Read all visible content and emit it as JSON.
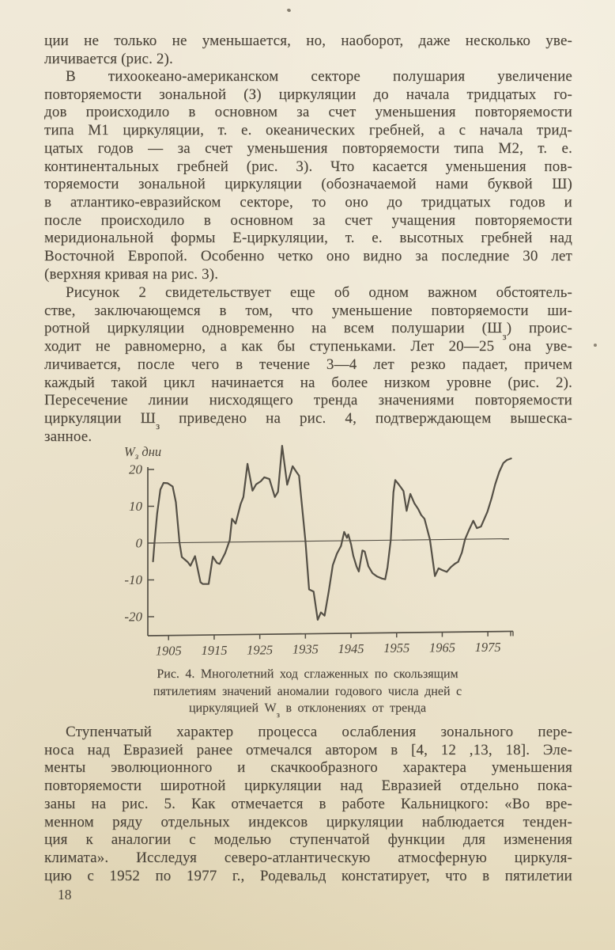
{
  "page": {
    "number": "18",
    "background_color": "#ede5d0",
    "ink_color": "#4a4339",
    "chart_ink_color": "#555046"
  },
  "paragraphs": [
    {
      "indent": false,
      "last_line_justified": false,
      "lines": [
        {
          "t": "ции не только не уменьшается, но, наоборот, даже несколько уве-"
        },
        {
          "t": "личивается (рис. 2)."
        }
      ]
    },
    {
      "indent": true,
      "last_line_justified": false,
      "lines": [
        {
          "t": "В тихоокеано-американском секторе полушария увеличение"
        },
        {
          "t": "повторяемости зональной (З) циркуляции до начала тридцатых го-"
        },
        {
          "t": "дов происходило в основном за счет уменьшения повторяемости"
        },
        {
          "t": "типа М1 циркуляции, т. е. океанических гребней, а с начала трид-"
        },
        {
          "t": "цатых годов — за счет уменьшения повторяемости типа М2, т. е."
        },
        {
          "t": "континентальных гребней (рис. 3). Что касается уменьшения пов-"
        },
        {
          "t": "торяемости зональной циркуляции (обозначаемой нами буквой Ш)"
        },
        {
          "t": "в атлантико-евразийском секторе, то оно до тридцатых годов и"
        },
        {
          "t": "после происходило в основном за счет учащения повторяемости"
        },
        {
          "t": "меридиональной формы Е-циркуляции, т. е. высотных гребней над"
        },
        {
          "t": "Восточной Европой. Особенно четко оно видно за последние 30 лет"
        },
        {
          "t": "(верхняя кривая на рис. 3)."
        }
      ]
    },
    {
      "indent": true,
      "last_line_justified": false,
      "lines": [
        {
          "t": "Рисунок 2 свидетельствует еще об одном важном обстоятель-"
        },
        {
          "t": "стве, заключающемся в том, что уменьшение повторяемости ши-"
        },
        {
          "parts": [
            "ротной циркуляции одновременно на всем полушарии (Ш",
            "з",
            ") проис-"
          ]
        },
        {
          "t": "ходит не равномерно, а как бы ступеньками. Лет 20—25 она уве-"
        },
        {
          "t": "личивается, после чего в течение 3—4 лет резко падает, причем"
        },
        {
          "t": "каждый такой цикл начинается на более низком уровне (рис. 2)."
        },
        {
          "t": "Пересечение линии нисходящего тренда значениями повторяемости"
        },
        {
          "parts": [
            "циркуляции Ш",
            "з",
            " приведено на рис. 4, подтверждающем вышеска-"
          ]
        },
        {
          "t": "занное."
        }
      ]
    },
    {
      "indent": true,
      "last_line_justified": true,
      "lines": [
        {
          "t": "Ступенчатый характер процесса ослабления зонального пере-"
        },
        {
          "t": "носа над Евразией ранее отмечался автором в [4, 12 ,13, 18]. Эле-"
        },
        {
          "t": "менты эволюционного и скачкообразного характера уменьшения"
        },
        {
          "t": "повторяемости широтной циркуляции над Евразией отдельно пока-"
        },
        {
          "t": "заны на рис. 5. Как отмечается в работе Кальницкого: «Во вре-"
        },
        {
          "t": "менном ряду отдельных индексов циркуляции наблюдается тенден-"
        },
        {
          "t": "ция к аналогии с моделью ступенчатой функции для изменения"
        },
        {
          "t": "климата». Исследуя северо-атлантическую атмосферную циркуля-"
        },
        {
          "t": "цию с 1952 по 1977 г., Родевальд констатирует, что в пятилетии"
        }
      ]
    }
  ],
  "figure_caption": {
    "lines": [
      {
        "t": "Рис. 4. Многолетний ход сглаженных по скользящим"
      },
      {
        "t": "пятилетиям значений аномалии годового числа дней с"
      },
      {
        "parts": [
          "циркуляцией W",
          "з",
          " в отклонениях от тренда"
        ]
      }
    ]
  },
  "chart_data": {
    "type": "line",
    "title": "Рис. 4. Многолетний ход сглаженных по скользящим пятилетиям значений аномалии годового числа дней с циркуляцией Wз в отклонениях от тренда",
    "xlabel": "",
    "ylabel": "Wз дни",
    "y_axis_label_parts": [
      "W",
      "з",
      " дни"
    ],
    "x_ticks": [
      1905,
      1915,
      1925,
      1935,
      1945,
      1955,
      1965,
      1975
    ],
    "y_ticks": [
      20,
      10,
      0,
      -10,
      -20
    ],
    "xlim": [
      1900.5,
      1981
    ],
    "ylim": [
      -25,
      27
    ],
    "grid": false,
    "zero_line": true,
    "legend": "none",
    "series": [
      {
        "name": "Аномалия числа дней с циркуляцией Wз (скользящие пятилетия)",
        "points": [
          [
            1901.6,
            -5
          ],
          [
            1901.9,
            0
          ],
          [
            1902.5,
            8
          ],
          [
            1903.2,
            14.5
          ],
          [
            1903.9,
            16.3
          ],
          [
            1904.8,
            16.2
          ],
          [
            1905.9,
            15.3
          ],
          [
            1906.6,
            11
          ],
          [
            1907.4,
            0
          ],
          [
            1907.9,
            -3.9
          ],
          [
            1909.2,
            -5.3
          ],
          [
            1909.8,
            -6.3
          ],
          [
            1910.8,
            -3.7
          ],
          [
            1912.0,
            -10.8
          ],
          [
            1912.5,
            -11.3
          ],
          [
            1913.8,
            -11.3
          ],
          [
            1914.7,
            -3.9
          ],
          [
            1915.6,
            -5.6
          ],
          [
            1916.2,
            -5.9
          ],
          [
            1917.4,
            -3.0
          ],
          [
            1918.4,
            0.5
          ],
          [
            1918.9,
            6.3
          ],
          [
            1919.7,
            5.0
          ],
          [
            1920.8,
            10.3
          ],
          [
            1921.4,
            12.2
          ],
          [
            1922.3,
            21.2
          ],
          [
            1923.4,
            13.9
          ],
          [
            1924.2,
            15.6
          ],
          [
            1925.2,
            16.4
          ],
          [
            1926.0,
            17.5
          ],
          [
            1927.1,
            17.0
          ],
          [
            1928.3,
            12.1
          ],
          [
            1929.0,
            13.5
          ],
          [
            1929.9,
            26.0
          ],
          [
            1931.0,
            15.4
          ],
          [
            1932.2,
            20.4
          ],
          [
            1933.0,
            18.9
          ],
          [
            1933.6,
            17.8
          ],
          [
            1935.0,
            0
          ],
          [
            1935.8,
            -13.1
          ],
          [
            1936.8,
            -13.7
          ],
          [
            1937.7,
            -21.4
          ],
          [
            1938.4,
            -19.4
          ],
          [
            1939.2,
            -20.3
          ],
          [
            1940.1,
            -13.8
          ],
          [
            1941.0,
            -6.6
          ],
          [
            1941.9,
            -3.5
          ],
          [
            1942.8,
            -1.4
          ],
          [
            1943.5,
            2.4
          ],
          [
            1944.1,
            0.8
          ],
          [
            1944.4,
            1.7
          ],
          [
            1945.0,
            -1.0
          ],
          [
            1945.5,
            -4.1
          ],
          [
            1946.2,
            -7.0
          ],
          [
            1946.7,
            -8.4
          ],
          [
            1947.5,
            -2.7
          ],
          [
            1948.0,
            -3.0
          ],
          [
            1948.8,
            -7.0
          ],
          [
            1949.7,
            -8.9
          ],
          [
            1950.7,
            -9.8
          ],
          [
            1951.8,
            -10.4
          ],
          [
            1952.5,
            -10.6
          ],
          [
            1953.0,
            -7.4
          ],
          [
            1953.7,
            0
          ],
          [
            1954.3,
            13.0
          ],
          [
            1954.7,
            16.3
          ],
          [
            1955.4,
            15.2
          ],
          [
            1956.0,
            14.2
          ],
          [
            1956.5,
            13.3
          ],
          [
            1957.2,
            7.9
          ],
          [
            1958.0,
            12.5
          ],
          [
            1958.9,
            9.9
          ],
          [
            1959.7,
            8.4
          ],
          [
            1960.4,
            6.7
          ],
          [
            1961.1,
            5.7
          ],
          [
            1962.3,
            0
          ],
          [
            1963.4,
            -9.9
          ],
          [
            1964.2,
            -7.8
          ],
          [
            1965.0,
            -8.3
          ],
          [
            1966.0,
            -8.8
          ],
          [
            1966.9,
            -7.5
          ],
          [
            1967.8,
            -6.6
          ],
          [
            1968.5,
            -6.1
          ],
          [
            1969.3,
            -3.6
          ],
          [
            1970.0,
            0
          ],
          [
            1970.9,
            2.6
          ],
          [
            1971.8,
            5.0
          ],
          [
            1972.6,
            3.0
          ],
          [
            1973.5,
            3.4
          ],
          [
            1974.9,
            7.4
          ],
          [
            1975.8,
            11.0
          ],
          [
            1976.6,
            14.8
          ],
          [
            1977.5,
            18.2
          ],
          [
            1978.4,
            20.6
          ],
          [
            1979.2,
            21.4
          ],
          [
            1980.1,
            21.8
          ]
        ]
      }
    ]
  }
}
